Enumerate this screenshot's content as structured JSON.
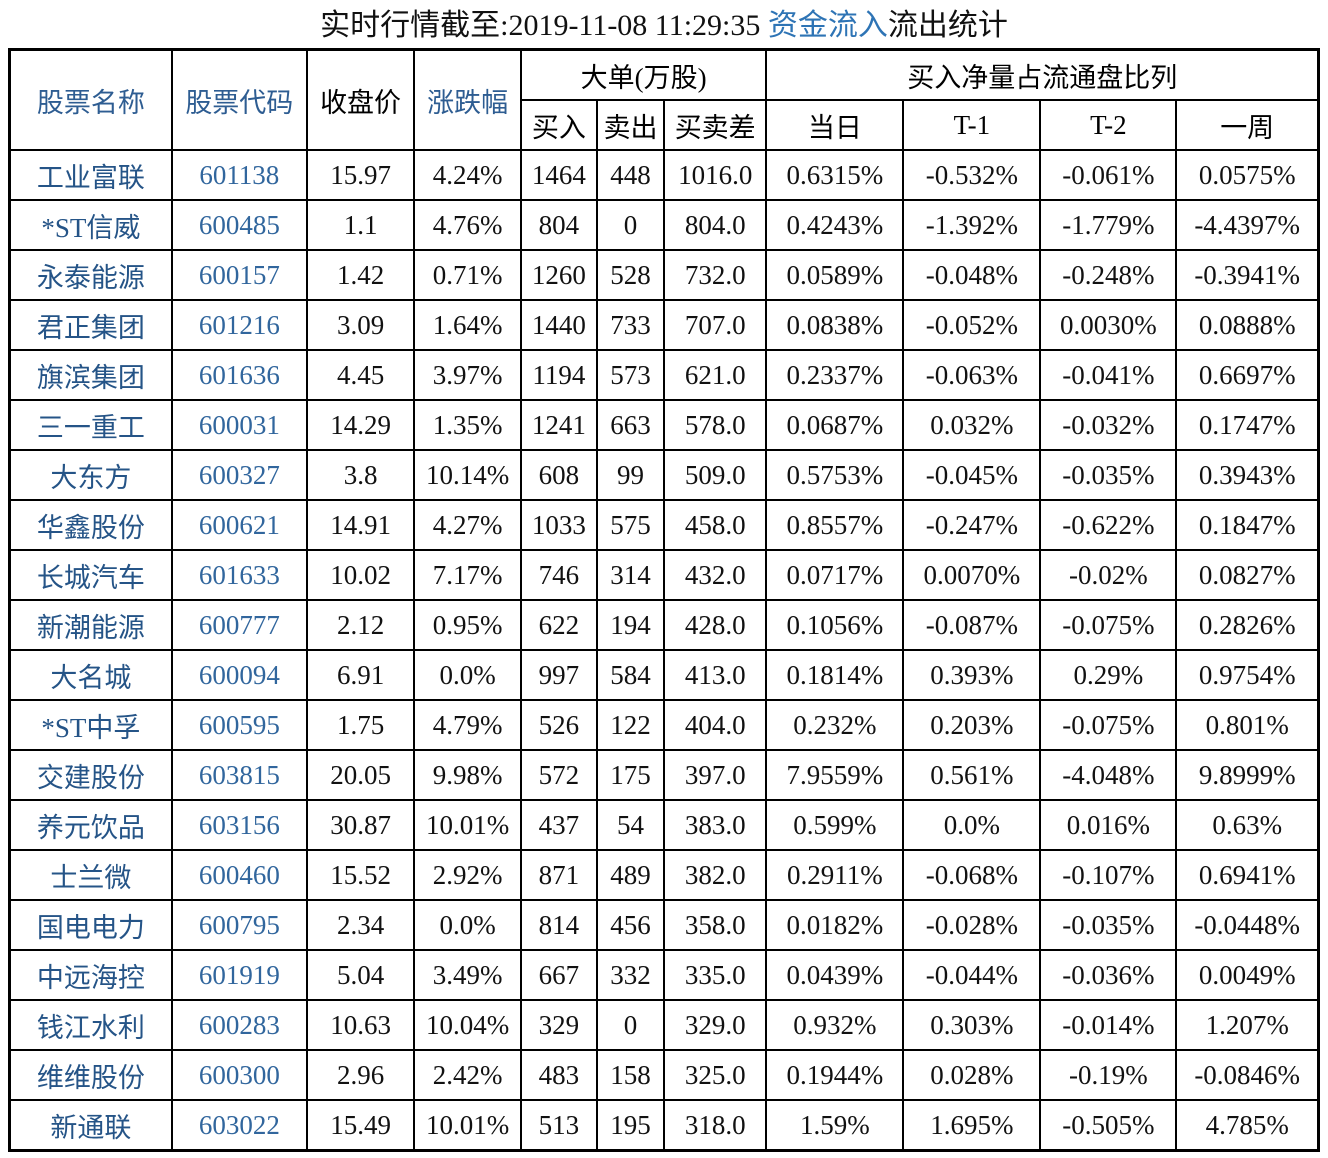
{
  "title": {
    "prefix": "实时行情截至:2019-11-08 11:29:35 ",
    "link": "资金流入",
    "suffix": "流出统计"
  },
  "colors": {
    "title_link_blue": "#2E74B5",
    "header_blue": "#2E5D92",
    "stock_name_blue": "#255487",
    "stock_code_blue": "#31669D",
    "border_black": "#000000",
    "background": "#FFFFFF"
  },
  "chart_data": {
    "type": "table",
    "title": "实时行情截至:2019-11-08 11:29:35 资金流入流出统计",
    "headers": {
      "name": "股票名称",
      "code": "股票代码",
      "close": "收盘价",
      "change": "涨跌幅",
      "group_big_order": "大单(万股)",
      "buy": "买入",
      "sell": "卖出",
      "diff": "买卖差",
      "group_net_buy_ratio": "买入净量占流通盘比列",
      "today": "当日",
      "t_minus_1": "T-1",
      "t_minus_2": "T-2",
      "week": "一周"
    },
    "columns": [
      "股票名称",
      "股票代码",
      "收盘价",
      "涨跌幅",
      "买入",
      "卖出",
      "买卖差",
      "当日",
      "T-1",
      "T-2",
      "一周"
    ],
    "rows": [
      [
        "工业富联",
        "601138",
        "15.97",
        "4.24%",
        "1464",
        "448",
        "1016.0",
        "0.6315%",
        "-0.532%",
        "-0.061%",
        "0.0575%"
      ],
      [
        "*ST信威",
        "600485",
        "1.1",
        "4.76%",
        "804",
        "0",
        "804.0",
        "0.4243%",
        "-1.392%",
        "-1.779%",
        "-4.4397%"
      ],
      [
        "永泰能源",
        "600157",
        "1.42",
        "0.71%",
        "1260",
        "528",
        "732.0",
        "0.0589%",
        "-0.048%",
        "-0.248%",
        "-0.3941%"
      ],
      [
        "君正集团",
        "601216",
        "3.09",
        "1.64%",
        "1440",
        "733",
        "707.0",
        "0.0838%",
        "-0.052%",
        "0.0030%",
        "0.0888%"
      ],
      [
        "旗滨集团",
        "601636",
        "4.45",
        "3.97%",
        "1194",
        "573",
        "621.0",
        "0.2337%",
        "-0.063%",
        "-0.041%",
        "0.6697%"
      ],
      [
        "三一重工",
        "600031",
        "14.29",
        "1.35%",
        "1241",
        "663",
        "578.0",
        "0.0687%",
        "0.032%",
        "-0.032%",
        "0.1747%"
      ],
      [
        "大东方",
        "600327",
        "3.8",
        "10.14%",
        "608",
        "99",
        "509.0",
        "0.5753%",
        "-0.045%",
        "-0.035%",
        "0.3943%"
      ],
      [
        "华鑫股份",
        "600621",
        "14.91",
        "4.27%",
        "1033",
        "575",
        "458.0",
        "0.8557%",
        "-0.247%",
        "-0.622%",
        "0.1847%"
      ],
      [
        "长城汽车",
        "601633",
        "10.02",
        "7.17%",
        "746",
        "314",
        "432.0",
        "0.0717%",
        "0.0070%",
        "-0.02%",
        "0.0827%"
      ],
      [
        "新潮能源",
        "600777",
        "2.12",
        "0.95%",
        "622",
        "194",
        "428.0",
        "0.1056%",
        "-0.087%",
        "-0.075%",
        "0.2826%"
      ],
      [
        "大名城",
        "600094",
        "6.91",
        "0.0%",
        "997",
        "584",
        "413.0",
        "0.1814%",
        "0.393%",
        "0.29%",
        "0.9754%"
      ],
      [
        "*ST中孚",
        "600595",
        "1.75",
        "4.79%",
        "526",
        "122",
        "404.0",
        "0.232%",
        "0.203%",
        "-0.075%",
        "0.801%"
      ],
      [
        "交建股份",
        "603815",
        "20.05",
        "9.98%",
        "572",
        "175",
        "397.0",
        "7.9559%",
        "0.561%",
        "-4.048%",
        "9.8999%"
      ],
      [
        "养元饮品",
        "603156",
        "30.87",
        "10.01%",
        "437",
        "54",
        "383.0",
        "0.599%",
        "0.0%",
        "0.016%",
        "0.63%"
      ],
      [
        "士兰微",
        "600460",
        "15.52",
        "2.92%",
        "871",
        "489",
        "382.0",
        "0.2911%",
        "-0.068%",
        "-0.107%",
        "0.6941%"
      ],
      [
        "国电电力",
        "600795",
        "2.34",
        "0.0%",
        "814",
        "456",
        "358.0",
        "0.0182%",
        "-0.028%",
        "-0.035%",
        "-0.0448%"
      ],
      [
        "中远海控",
        "601919",
        "5.04",
        "3.49%",
        "667",
        "332",
        "335.0",
        "0.0439%",
        "-0.044%",
        "-0.036%",
        "0.0049%"
      ],
      [
        "钱江水利",
        "600283",
        "10.63",
        "10.04%",
        "329",
        "0",
        "329.0",
        "0.932%",
        "0.303%",
        "-0.014%",
        "1.207%"
      ],
      [
        "维维股份",
        "600300",
        "2.96",
        "2.42%",
        "483",
        "158",
        "325.0",
        "0.1944%",
        "0.028%",
        "-0.19%",
        "-0.0846%"
      ],
      [
        "新通联",
        "603022",
        "15.49",
        "10.01%",
        "513",
        "195",
        "318.0",
        "1.59%",
        "1.695%",
        "-0.505%",
        "4.785%"
      ]
    ]
  }
}
